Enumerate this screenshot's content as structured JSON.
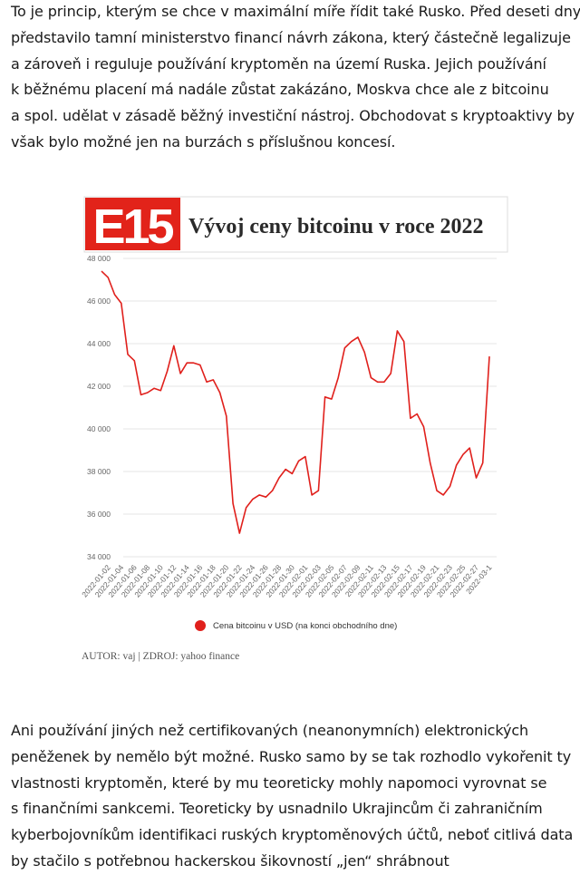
{
  "article": {
    "paragraph1": [
      "To je princip, kterým se chce v maximální míře řídit také Rusko. Před deseti dny",
      "představilo tamní ministerstvo financí návrh zákona, který částečně legalizuje",
      "a zároveň i reguluje používání kryptoměn na území Ruska. Jejich používání",
      "k běžnému placení má nadále zůstat zakázáno, Moskva chce ale z bitcoinu",
      "a spol. udělat v zásadě běžný investiční nástroj. Obchodovat s kryptoaktivy by",
      "však bylo možné jen na burzách s příslušnou koncesí."
    ],
    "paragraph2": [
      "Ani používání jiných než certifikovaných (neanonymních) elektronických",
      "peněženek by nemělo být možné. Rusko samo by se tak rozhodlo vykořenit ty",
      "vlastnosti kryptoměn, které by mu teoreticky mohly napomoci vyrovnat se",
      "s finančními sankcemi. Teoreticky by usnadnilo Ukrajincům či zahraničním",
      "kyberbojovníkům identifikaci ruských kryptoměnových účtů, neboť citlivá data",
      "by stačilo s potřebnou hackerskou šikovností „jen“ shrábnout"
    ]
  },
  "figure": {
    "logo_text": "E15",
    "credit": "AUTOR: vaj | ZDROJ: yahoo finance",
    "colors": {
      "brand_red": "#e2231a",
      "line_red": "#e0201c",
      "grid": "#e4e4e4",
      "tick_text": "#666666"
    }
  },
  "chart_data": {
    "type": "line",
    "title": "Vývoj ceny bitcoinu v roce 2022",
    "xlabel": "",
    "ylabel": "",
    "ylim": [
      34000,
      48000
    ],
    "yticks": [
      34000,
      36000,
      38000,
      40000,
      42000,
      44000,
      46000,
      48000
    ],
    "ytick_labels": [
      "34 000",
      "36 000",
      "38 000",
      "40 000",
      "42 000",
      "44 000",
      "46 000",
      "48 000"
    ],
    "grid": true,
    "legend_position": "bottom",
    "x_tick_labels": [
      "2022-01-02",
      "2022-01-04",
      "2022-01-06",
      "2022-01-08",
      "2022-01-10",
      "2022-01-12",
      "2022-01-14",
      "2022-01-16",
      "2022-01-18",
      "2022-01-20",
      "2022-01-22",
      "2022-01-24",
      "2022-01-26",
      "2022-01-28",
      "2022-01-30",
      "2022-02-01",
      "2022-02-03",
      "2022-02-05",
      "2022-02-07",
      "2022-02-09",
      "2022-02-11",
      "2022-02-13",
      "2022-02-15",
      "2022-02-17",
      "2022-02-19",
      "2022-02-21",
      "2022-02-23",
      "2022-02-25",
      "2022-02-27",
      "2022-03-1"
    ],
    "series": [
      {
        "name": "Cena bitcoinu v USD (na konci obchodního dne)",
        "color": "#e0201c",
        "x": [
          "2022-01-01",
          "2022-01-02",
          "2022-01-03",
          "2022-01-04",
          "2022-01-05",
          "2022-01-06",
          "2022-01-07",
          "2022-01-08",
          "2022-01-09",
          "2022-01-10",
          "2022-01-11",
          "2022-01-12",
          "2022-01-13",
          "2022-01-14",
          "2022-01-15",
          "2022-01-16",
          "2022-01-17",
          "2022-01-18",
          "2022-01-19",
          "2022-01-20",
          "2022-01-21",
          "2022-01-22",
          "2022-01-23",
          "2022-01-24",
          "2022-01-25",
          "2022-01-26",
          "2022-01-27",
          "2022-01-28",
          "2022-01-29",
          "2022-01-30",
          "2022-01-31",
          "2022-02-01",
          "2022-02-02",
          "2022-02-03",
          "2022-02-04",
          "2022-02-05",
          "2022-02-06",
          "2022-02-07",
          "2022-02-08",
          "2022-02-09",
          "2022-02-10",
          "2022-02-11",
          "2022-02-12",
          "2022-02-13",
          "2022-02-14",
          "2022-02-15",
          "2022-02-16",
          "2022-02-17",
          "2022-02-18",
          "2022-02-19",
          "2022-02-20",
          "2022-02-21",
          "2022-02-22",
          "2022-02-23",
          "2022-02-24",
          "2022-02-25",
          "2022-02-26",
          "2022-02-27",
          "2022-02-28",
          "2022-03-01"
        ],
        "values": [
          47400,
          47100,
          46300,
          45900,
          43500,
          43200,
          41600,
          41700,
          41900,
          41800,
          42700,
          43900,
          42600,
          43100,
          43100,
          43000,
          42200,
          42300,
          41700,
          40600,
          36500,
          35100,
          36300,
          36700,
          36900,
          36800,
          37100,
          37700,
          38100,
          37900,
          38500,
          38700,
          36900,
          37100,
          41500,
          41400,
          42400,
          43800,
          44100,
          44300,
          43600,
          42400,
          42200,
          42200,
          42600,
          44600,
          44100,
          40500,
          40700,
          40100,
          38400,
          37100,
          36900,
          37300,
          38300,
          38800,
          39100,
          37700,
          38400,
          43400
        ]
      }
    ]
  }
}
